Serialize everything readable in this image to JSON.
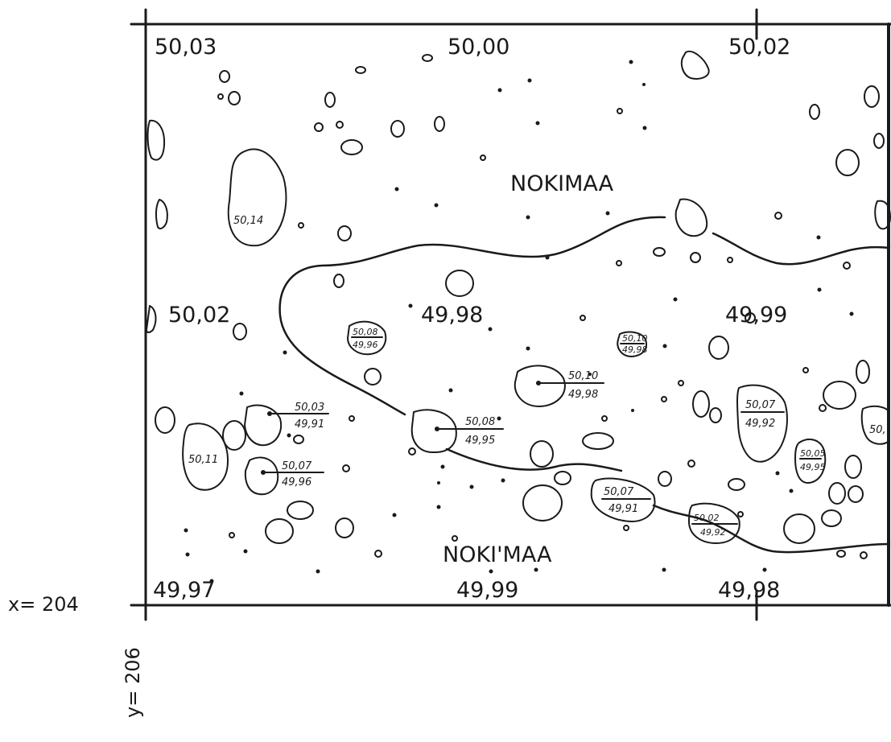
{
  "corner_coords": {
    "x": "x= 204",
    "y": "y= 206"
  },
  "spot_heights": {
    "top_left": "50,03",
    "top_mid": "50,00",
    "top_right": "50,02",
    "mid_left": "50,02",
    "mid_center": "49,98",
    "mid_right": "49,99",
    "bot_left": "49,97",
    "bot_mid": "49,99",
    "bot_right": "49,98"
  },
  "boulder_heights": {
    "b1": "50,14",
    "b2": "50,11",
    "b3": "50,08",
    "b4": "50,10",
    "b5": "50,07",
    "b6": "50,"
  },
  "boulder_pairs": {
    "p1": {
      "top": "50,08",
      "bottom": "49,96"
    },
    "p2": {
      "top": "50,10",
      "bottom": "49,98"
    },
    "p3": {
      "top": "50,03",
      "bottom": "49,91"
    },
    "p4": {
      "top": "50,08",
      "bottom": "49,95"
    },
    "p5": {
      "top": "50,07",
      "bottom": "49,96"
    },
    "p6": {
      "top": "50,07",
      "bottom": "49,92"
    },
    "p7": {
      "top": "50,05",
      "bottom": "49,95"
    },
    "p8": {
      "top": "50,07",
      "bottom": "49,91"
    },
    "p9": {
      "top": "50,02",
      "bottom": "49,92"
    },
    "p10": {
      "top": "50,10",
      "bottom": "49,98"
    }
  },
  "area_names": {
    "north": "NOKIMAA",
    "south": "NOKI'MAA"
  }
}
